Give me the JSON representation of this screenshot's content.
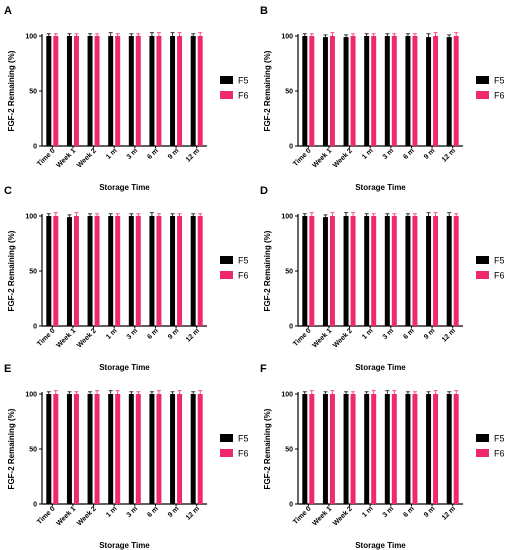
{
  "colors": {
    "F5": "#000000",
    "F6": "#ee2a6b",
    "axis": "#000000"
  },
  "chart_data": [
    {
      "panel": "A",
      "type": "bar",
      "categories": [
        "Time 0",
        "Week 1",
        "Week 2",
        "1 m",
        "3 m",
        "6 m",
        "9 m",
        "12 m"
      ],
      "series": [
        {
          "name": "F5",
          "values": [
            100,
            100,
            100,
            100,
            100,
            100,
            100,
            100
          ],
          "errors": [
            2,
            2,
            2,
            3,
            2,
            3,
            3,
            2
          ]
        },
        {
          "name": "F6",
          "values": [
            100,
            100,
            100,
            100,
            100,
            100,
            100,
            100
          ],
          "errors": [
            2,
            2,
            2,
            2,
            2,
            3,
            3,
            3
          ]
        }
      ],
      "xlabel": "Storage Time",
      "ylabel": "FGF-2 Remaining (%)",
      "ylim": [
        0,
        100
      ],
      "yticks": [
        0,
        50,
        100
      ],
      "legend_position": "right",
      "grid": false
    },
    {
      "panel": "B",
      "type": "bar",
      "categories": [
        "Time 0",
        "Week 1",
        "Week 2",
        "1 m",
        "3 m",
        "6 m",
        "9 m",
        "12 m"
      ],
      "series": [
        {
          "name": "F5",
          "values": [
            100,
            99,
            99,
            100,
            100,
            100,
            99,
            99
          ],
          "errors": [
            2,
            2,
            2,
            2,
            2,
            2,
            3,
            2
          ]
        },
        {
          "name": "F6",
          "values": [
            100,
            100,
            100,
            100,
            100,
            100,
            100,
            100
          ],
          "errors": [
            2,
            3,
            2,
            2,
            2,
            2,
            3,
            3
          ]
        }
      ],
      "xlabel": "Storage Time",
      "ylabel": "FGF-2 Remaining (%)",
      "ylim": [
        0,
        100
      ],
      "yticks": [
        0,
        50,
        100
      ],
      "legend_position": "right",
      "grid": false
    },
    {
      "panel": "C",
      "type": "bar",
      "categories": [
        "Time 0",
        "Week 1",
        "Week 2",
        "1 m",
        "3 m",
        "6 m",
        "9 m",
        "12 m"
      ],
      "series": [
        {
          "name": "F5",
          "values": [
            100,
            99,
            100,
            100,
            100,
            100,
            100,
            100
          ],
          "errors": [
            2,
            2,
            2,
            2,
            2,
            3,
            2,
            2
          ]
        },
        {
          "name": "F6",
          "values": [
            100,
            100,
            100,
            100,
            100,
            100,
            100,
            100
          ],
          "errors": [
            3,
            3,
            2,
            2,
            2,
            2,
            2,
            2
          ]
        }
      ],
      "xlabel": "Storage Time",
      "ylabel": "FGF-2 Remaining (%)",
      "ylim": [
        0,
        100
      ],
      "yticks": [
        0,
        50,
        100
      ],
      "legend_position": "right",
      "grid": false
    },
    {
      "panel": "D",
      "type": "bar",
      "categories": [
        "Time 0",
        "Week 1",
        "Week 2",
        "1 m",
        "3 m",
        "6 m",
        "9 m",
        "12 m"
      ],
      "series": [
        {
          "name": "F5",
          "values": [
            100,
            99,
            100,
            100,
            100,
            100,
            100,
            100
          ],
          "errors": [
            2,
            2,
            3,
            2,
            2,
            2,
            3,
            3
          ]
        },
        {
          "name": "F6",
          "values": [
            100,
            100,
            100,
            100,
            100,
            100,
            100,
            100
          ],
          "errors": [
            3,
            3,
            3,
            2,
            2,
            2,
            3,
            2
          ]
        }
      ],
      "xlabel": "Storage Time",
      "ylabel": "FGF-2 Remaining (%)",
      "ylim": [
        0,
        100
      ],
      "yticks": [
        0,
        50,
        100
      ],
      "legend_position": "right",
      "grid": false
    },
    {
      "panel": "E",
      "type": "bar",
      "categories": [
        "Time 0",
        "Week 1",
        "Week 2",
        "1 m",
        "3 m",
        "6 m",
        "9 m",
        "12 m"
      ],
      "series": [
        {
          "name": "F5",
          "values": [
            100,
            100,
            100,
            100,
            100,
            100,
            100,
            100
          ],
          "errors": [
            2,
            2,
            2,
            3,
            2,
            2,
            2,
            2
          ]
        },
        {
          "name": "F6",
          "values": [
            100,
            100,
            100,
            100,
            100,
            100,
            100,
            100
          ],
          "errors": [
            3,
            2,
            3,
            3,
            2,
            3,
            3,
            3
          ]
        }
      ],
      "xlabel": "Storage Time",
      "ylabel": "FGF-2 Remaining (%)",
      "ylim": [
        0,
        100
      ],
      "yticks": [
        0,
        50,
        100
      ],
      "legend_position": "right",
      "grid": false
    },
    {
      "panel": "F",
      "type": "bar",
      "categories": [
        "Time 0",
        "Week 1",
        "Week 2",
        "1 m",
        "3 m",
        "6 m",
        "9 m",
        "12 m"
      ],
      "series": [
        {
          "name": "F5",
          "values": [
            100,
            100,
            100,
            100,
            100,
            100,
            100,
            100
          ],
          "errors": [
            2,
            2,
            2,
            2,
            3,
            2,
            2,
            2
          ]
        },
        {
          "name": "F6",
          "values": [
            100,
            100,
            100,
            100,
            100,
            100,
            100,
            100
          ],
          "errors": [
            3,
            3,
            2,
            3,
            3,
            2,
            3,
            3
          ]
        }
      ],
      "xlabel": "Storage Time",
      "ylabel": "FGF-2 Remaining (%)",
      "ylim": [
        0,
        100
      ],
      "yticks": [
        0,
        50,
        100
      ],
      "legend_position": "right",
      "grid": false
    }
  ]
}
